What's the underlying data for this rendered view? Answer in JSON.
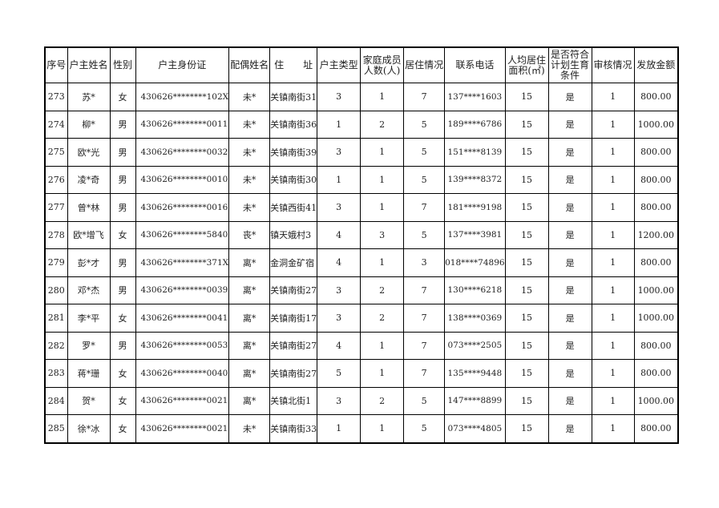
{
  "headers": [
    "序号",
    "户主姓名",
    "性别",
    "户主身份证",
    "配偶姓名",
    "住　　址",
    "户主类型",
    "家庭成员人数(人)",
    "居住情况",
    "联系电话",
    "人均居住面积(㎡)",
    "是否符合计划生育条件",
    "审核情况",
    "发放金额"
  ],
  "rows": [
    [
      "273",
      "苏*",
      "女",
      "430626********102X",
      "未*",
      "关镇南街31",
      "3",
      "1",
      "7",
      "137****1603",
      "15",
      "是",
      "1",
      "800.00"
    ],
    [
      "274",
      "柳*",
      "男",
      "430626********0011",
      "未*",
      "关镇南街36",
      "1",
      "2",
      "5",
      "189****6786",
      "15",
      "是",
      "1",
      "1000.00"
    ],
    [
      "275",
      "欧*光",
      "男",
      "430626********0032",
      "未*",
      "关镇南街39",
      "3",
      "1",
      "5",
      "151****8139",
      "15",
      "是",
      "1",
      "800.00"
    ],
    [
      "276",
      "凌*奇",
      "男",
      "430626********0010",
      "未*",
      "关镇南街30",
      "1",
      "1",
      "5",
      "139****8372",
      "15",
      "是",
      "1",
      "800.00"
    ],
    [
      "277",
      "曾*林",
      "男",
      "430626********0016",
      "未*",
      "关镇西街41",
      "3",
      "1",
      "7",
      "181****9198",
      "15",
      "是",
      "1",
      "800.00"
    ],
    [
      "278",
      "欧*增飞",
      "女",
      "430626********5840",
      "丧*",
      "镇天娥村3",
      "4",
      "3",
      "5",
      "137****3981",
      "15",
      "是",
      "1",
      "1200.00"
    ],
    [
      "279",
      "彭*才",
      "男",
      "430626********371X",
      "离*",
      "金洞金矿宿",
      "4",
      "1",
      "3",
      "018****74896",
      "15",
      "是",
      "1",
      "800.00"
    ],
    [
      "280",
      "邓*杰",
      "男",
      "430626********0039",
      "离*",
      "关镇南街27",
      "3",
      "2",
      "7",
      "130****6218",
      "15",
      "是",
      "1",
      "1000.00"
    ],
    [
      "281",
      "李*平",
      "女",
      "430626********0041",
      "离*",
      "关镇南街17",
      "3",
      "2",
      "7",
      "138****0369",
      "15",
      "是",
      "1",
      "1000.00"
    ],
    [
      "282",
      "罗*",
      "男",
      "430626********0053",
      "离*",
      "关镇南街27",
      "4",
      "1",
      "7",
      "073****2505",
      "15",
      "是",
      "1",
      "800.00"
    ],
    [
      "283",
      "蒋*珊",
      "女",
      "430626********0040",
      "离*",
      "关镇南街27",
      "5",
      "1",
      "7",
      "135****9448",
      "15",
      "是",
      "1",
      "800.00"
    ],
    [
      "284",
      "贺*",
      "女",
      "430626********0021",
      "离*",
      "关镇北街1",
      "3",
      "2",
      "5",
      "147****8899",
      "15",
      "是",
      "1",
      "1000.00"
    ],
    [
      "285",
      "徐*冰",
      "女",
      "430626********0021",
      "未*",
      "关镇南街33",
      "1",
      "1",
      "5",
      "073****4805",
      "15",
      "是",
      "1",
      "800.00"
    ]
  ]
}
